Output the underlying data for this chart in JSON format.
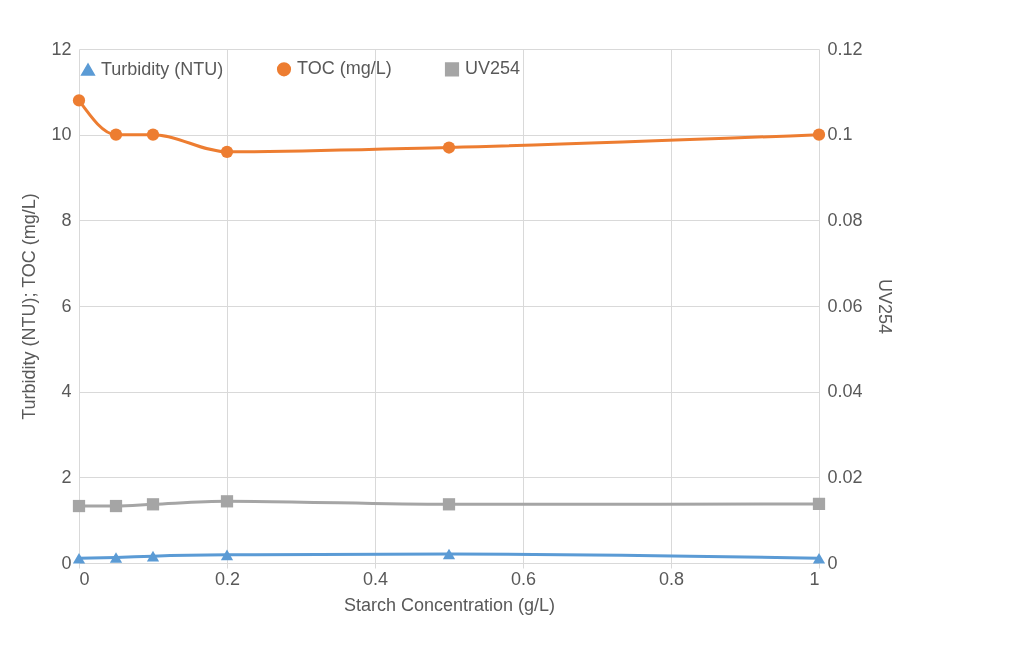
{
  "chart_data": {
    "type": "line",
    "xlabel": "Starch Concentration (g/L)",
    "ylabel": "Turbidity (NTU); TOC (mg/L)",
    "y2label": "UV254",
    "x": [
      0,
      0.05,
      0.1,
      0.2,
      0.5,
      1
    ],
    "series": [
      {
        "name": "Turbidity (NTU)",
        "color": "#5b9bd5",
        "marker": "triangle",
        "values": [
          0.11,
          0.13,
          0.16,
          0.19,
          0.21,
          0.11
        ]
      },
      {
        "name": "TOC (mg/L)",
        "color": "#ed7d31",
        "marker": "circle",
        "values": [
          10.8,
          10.0,
          10.0,
          9.6,
          9.7,
          10.0
        ]
      },
      {
        "name": "UV254",
        "color": "#a5a5a5",
        "marker": "square",
        "axis": "y2",
        "values": [
          0.0133,
          0.0133,
          0.0137,
          0.0144,
          0.0137,
          0.0138
        ]
      }
    ],
    "xlim": [
      0,
      1
    ],
    "xticks": [
      0,
      0.2,
      0.4,
      0.6,
      0.8,
      1
    ],
    "ylim": [
      0,
      12
    ],
    "yticks": [
      0,
      2,
      4,
      6,
      8,
      10,
      12
    ],
    "y2lim": [
      0,
      0.12
    ],
    "y2ticks": [
      0,
      0.02,
      0.04,
      0.06,
      0.08,
      0.1,
      0.12
    ],
    "grid": true,
    "legend": "top",
    "line_style": "solid"
  }
}
